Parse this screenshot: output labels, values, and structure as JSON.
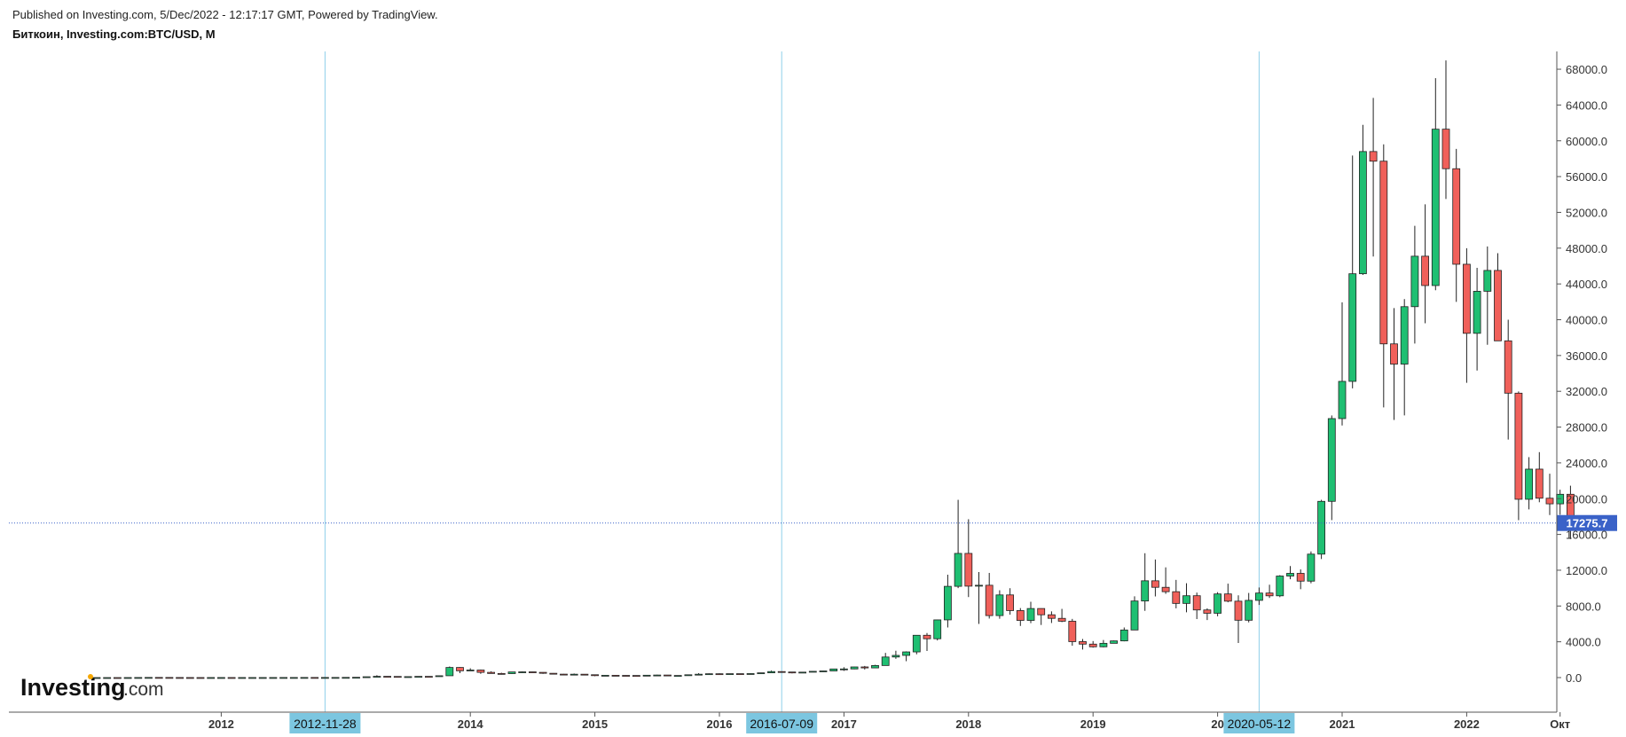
{
  "header": {
    "published": "Published on Investing.com, 5/Dec/2022 - 12:17:17 GMT, Powered by TradingView.",
    "symbol": "Биткоин, Investing.com:BTC/USD, M"
  },
  "logo": {
    "main": "Investing",
    "sub": ".com",
    "dot_color": "#f5a700"
  },
  "colors": {
    "up": "#1fbf72",
    "down": "#f0605a",
    "wick": "#222222",
    "marker": "#8fd0ea",
    "marker_label": "#7cc6e0",
    "price_line": "#3a62c8",
    "axis": "#555555"
  },
  "chart_data": {
    "type": "candlestick",
    "interval": "M",
    "x_axis": {
      "ticks": [
        {
          "label": "2012",
          "date": "2012-01"
        },
        {
          "label": "2014",
          "date": "2014-01"
        },
        {
          "label": "2015",
          "date": "2015-01"
        },
        {
          "label": "2016",
          "date": "2016-01"
        },
        {
          "label": "2017",
          "date": "2017-01"
        },
        {
          "label": "2018",
          "date": "2018-01"
        },
        {
          "label": "2019",
          "date": "2019-01"
        },
        {
          "label": "20",
          "date": "2020-01"
        },
        {
          "label": "2021",
          "date": "2021-01"
        },
        {
          "label": "2022",
          "date": "2022-01"
        },
        {
          "label": "Окт",
          "date": "2022-10"
        }
      ],
      "range": [
        "2011-01",
        "2023-12"
      ]
    },
    "y_axis": {
      "ticks": [
        0,
        4000,
        8000,
        12000,
        16000,
        20000,
        24000,
        28000,
        32000,
        36000,
        40000,
        44000,
        48000,
        52000,
        56000,
        60000,
        64000,
        68000
      ],
      "range": [
        -3900,
        69800
      ],
      "position": "right",
      "tick_format": "one-decimal"
    },
    "markers": [
      {
        "date": "2012-11",
        "label": "2012-11-28"
      },
      {
        "date": "2016-07",
        "label": "2016-07-09"
      },
      {
        "date": "2020-05",
        "label": "2020-05-12"
      }
    ],
    "last_price": 17275.7,
    "last_price_label": "17275.7",
    "candles": [
      [
        "2011-01",
        0.3,
        0.5,
        0.3,
        0.5
      ],
      [
        "2011-02",
        0.5,
        1.1,
        0.5,
        0.9
      ],
      [
        "2011-03",
        0.9,
        1.0,
        0.7,
        0.8
      ],
      [
        "2011-04",
        0.8,
        3.9,
        0.6,
        3.5
      ],
      [
        "2011-05",
        3.5,
        9.0,
        3.0,
        8.7
      ],
      [
        "2011-06",
        8.7,
        31.9,
        8.0,
        16.1
      ],
      [
        "2011-07",
        16.1,
        16.5,
        12.0,
        13.4
      ],
      [
        "2011-08",
        13.4,
        13.9,
        7.0,
        8.2
      ],
      [
        "2011-09",
        8.2,
        8.9,
        4.5,
        5.1
      ],
      [
        "2011-10",
        5.1,
        5.4,
        2.0,
        3.2
      ],
      [
        "2011-11",
        3.2,
        3.5,
        2.0,
        3.0
      ],
      [
        "2011-12",
        3.0,
        4.8,
        2.7,
        4.7
      ],
      [
        "2012-01",
        4.7,
        7.4,
        4.6,
        5.5
      ],
      [
        "2012-02",
        5.5,
        6.1,
        4.2,
        4.9
      ],
      [
        "2012-03",
        4.9,
        5.4,
        4.6,
        4.9
      ],
      [
        "2012-04",
        4.9,
        5.2,
        4.7,
        5.0
      ],
      [
        "2012-05",
        5.0,
        5.3,
        4.9,
        5.2
      ],
      [
        "2012-06",
        5.2,
        6.8,
        5.1,
        6.7
      ],
      [
        "2012-07",
        6.7,
        9.7,
        6.5,
        9.3
      ],
      [
        "2012-08",
        9.3,
        15.4,
        7.1,
        10.2
      ],
      [
        "2012-09",
        10.2,
        12.6,
        10.0,
        12.4
      ],
      [
        "2012-10",
        12.4,
        12.7,
        10.5,
        11.2
      ],
      [
        "2012-11",
        11.2,
        12.8,
        10.1,
        12.6
      ],
      [
        "2012-12",
        12.6,
        13.8,
        12.5,
        13.5
      ],
      [
        "2013-01",
        13.5,
        20.8,
        13.2,
        20.4
      ],
      [
        "2013-02",
        20.4,
        33.4,
        19.6,
        33.4
      ],
      [
        "2013-03",
        33.4,
        95.0,
        33.1,
        93.0
      ],
      [
        "2013-04",
        93.0,
        266.0,
        50.0,
        139.0
      ],
      [
        "2013-05",
        139.0,
        140.0,
        78.0,
        128.0
      ],
      [
        "2013-06",
        128.0,
        129.0,
        85.0,
        97.0
      ],
      [
        "2013-07",
        97.0,
        110.0,
        65.0,
        106.0
      ],
      [
        "2013-08",
        106.0,
        138.0,
        102.0,
        135.0
      ],
      [
        "2013-09",
        135.0,
        141.0,
        120.0,
        133.0
      ],
      [
        "2013-10",
        133.0,
        215.0,
        100.0,
        205.0
      ],
      [
        "2013-11",
        205.0,
        1240.0,
        200.0,
        1130.0
      ],
      [
        "2013-12",
        1130.0,
        1165.0,
        500.0,
        757.0
      ],
      [
        "2014-01",
        757.0,
        1040.0,
        750.0,
        845.0
      ],
      [
        "2014-02",
        845.0,
        900.0,
        420.0,
        585.0
      ],
      [
        "2014-03",
        585.0,
        700.0,
        440.0,
        460.0
      ],
      [
        "2014-04",
        460.0,
        540.0,
        340.0,
        445.0
      ],
      [
        "2014-05",
        445.0,
        630.0,
        420.0,
        630.0
      ],
      [
        "2014-06",
        630.0,
        680.0,
        530.0,
        640.0
      ],
      [
        "2014-07",
        640.0,
        650.0,
        560.0,
        585.0
      ],
      [
        "2014-08",
        585.0,
        600.0,
        420.0,
        480.0
      ],
      [
        "2014-09",
        480.0,
        500.0,
        360.0,
        385.0
      ],
      [
        "2014-10",
        385.0,
        415.0,
        290.0,
        340.0
      ],
      [
        "2014-11",
        340.0,
        455.0,
        320.0,
        378.0
      ],
      [
        "2014-12",
        378.0,
        385.0,
        305.0,
        318.0
      ],
      [
        "2015-01",
        318.0,
        320.0,
        152.0,
        217.0
      ],
      [
        "2015-02",
        217.0,
        265.0,
        210.0,
        254.0
      ],
      [
        "2015-03",
        254.0,
        300.0,
        240.0,
        245.0
      ],
      [
        "2015-04",
        245.0,
        260.0,
        210.0,
        236.0
      ],
      [
        "2015-05",
        236.0,
        250.0,
        228.0,
        230.0
      ],
      [
        "2015-06",
        230.0,
        268.0,
        220.0,
        263.0
      ],
      [
        "2015-07",
        263.0,
        320.0,
        256.0,
        285.0
      ],
      [
        "2015-08",
        285.0,
        285.0,
        198.0,
        230.0
      ],
      [
        "2015-09",
        230.0,
        245.0,
        225.0,
        236.0
      ],
      [
        "2015-10",
        236.0,
        330.0,
        236.0,
        314.0
      ],
      [
        "2015-11",
        314.0,
        495.0,
        300.0,
        377.0
      ],
      [
        "2015-12",
        377.0,
        465.0,
        350.0,
        430.0
      ],
      [
        "2016-01",
        430.0,
        465.0,
        355.0,
        370.0
      ],
      [
        "2016-02",
        370.0,
        445.0,
        365.0,
        437.0
      ],
      [
        "2016-03",
        437.0,
        440.0,
        400.0,
        416.0
      ],
      [
        "2016-04",
        416.0,
        465.0,
        415.0,
        448.0
      ],
      [
        "2016-05",
        448.0,
        550.0,
        440.0,
        532.0
      ],
      [
        "2016-06",
        532.0,
        780.0,
        530.0,
        673.0
      ],
      [
        "2016-07",
        673.0,
        705.0,
        600.0,
        624.0
      ],
      [
        "2016-08",
        624.0,
        625.0,
        470.0,
        573.0
      ],
      [
        "2016-09",
        573.0,
        620.0,
        570.0,
        608.0
      ],
      [
        "2016-10",
        608.0,
        720.0,
        605.0,
        700.0
      ],
      [
        "2016-11",
        700.0,
        755.0,
        690.0,
        742.0
      ],
      [
        "2016-12",
        742.0,
        975.0,
        740.0,
        963.0
      ],
      [
        "2017-01",
        963.0,
        1160.0,
        750.0,
        965.0
      ],
      [
        "2017-02",
        965.0,
        1210.0,
        930.0,
        1190.0
      ],
      [
        "2017-03",
        1190.0,
        1300.0,
        900.0,
        1080.0
      ],
      [
        "2017-04",
        1080.0,
        1420.0,
        1060.0,
        1350.0
      ],
      [
        "2017-05",
        1350.0,
        2760.0,
        1350.0,
        2300.0
      ],
      [
        "2017-06",
        2300.0,
        3000.0,
        2100.0,
        2480.0
      ],
      [
        "2017-07",
        2480.0,
        2930.0,
        1830.0,
        2870.0
      ],
      [
        "2017-08",
        2870.0,
        4750.0,
        2600.0,
        4730.0
      ],
      [
        "2017-09",
        4730.0,
        4980.0,
        2980.0,
        4340.0
      ],
      [
        "2017-10",
        4340.0,
        6470.0,
        4150.0,
        6450.0
      ],
      [
        "2017-11",
        6450.0,
        11500.0,
        5600.0,
        10200.0
      ],
      [
        "2017-12",
        10200.0,
        19870.0,
        10000.0,
        13880.0
      ],
      [
        "2018-01",
        13880.0,
        17700.0,
        9000.0,
        10220.0
      ],
      [
        "2018-02",
        10220.0,
        11800.0,
        6000.0,
        10320.0
      ],
      [
        "2018-03",
        10320.0,
        11700.0,
        6600.0,
        6930.0
      ],
      [
        "2018-04",
        6930.0,
        9760.0,
        6580.0,
        9240.0
      ],
      [
        "2018-05",
        9240.0,
        9990.0,
        7030.0,
        7490.0
      ],
      [
        "2018-06",
        7490.0,
        7770.0,
        5770.0,
        6390.0
      ],
      [
        "2018-07",
        6390.0,
        8480.0,
        6080.0,
        7720.0
      ],
      [
        "2018-08",
        7720.0,
        7740.0,
        5880.0,
        7020.0
      ],
      [
        "2018-09",
        7020.0,
        7400.0,
        6100.0,
        6620.0
      ],
      [
        "2018-10",
        6620.0,
        7680.0,
        6200.0,
        6300.0
      ],
      [
        "2018-11",
        6300.0,
        6560.0,
        3560.0,
        4020.0
      ],
      [
        "2018-12",
        4020.0,
        4310.0,
        3130.0,
        3740.0
      ],
      [
        "2019-01",
        3740.0,
        4080.0,
        3350.0,
        3440.0
      ],
      [
        "2019-02",
        3440.0,
        4200.0,
        3380.0,
        3830.0
      ],
      [
        "2019-03",
        3830.0,
        4140.0,
        3830.0,
        4100.0
      ],
      [
        "2019-04",
        4100.0,
        5600.0,
        4050.0,
        5320.0
      ],
      [
        "2019-05",
        5320.0,
        9080.0,
        5300.0,
        8560.0
      ],
      [
        "2019-06",
        8560.0,
        13900.0,
        7460.0,
        10820.0
      ],
      [
        "2019-07",
        10820.0,
        13200.0,
        9070.0,
        10090.0
      ],
      [
        "2019-08",
        10090.0,
        12320.0,
        9360.0,
        9600.0
      ],
      [
        "2019-09",
        9600.0,
        10920.0,
        7740.0,
        8290.0
      ],
      [
        "2019-10",
        8290.0,
        10540.0,
        7300.0,
        9150.0
      ],
      [
        "2019-11",
        9150.0,
        9500.0,
        6540.0,
        7560.0
      ],
      [
        "2019-12",
        7560.0,
        7740.0,
        6430.0,
        7190.0
      ],
      [
        "2020-01",
        7190.0,
        9550.0,
        6850.0,
        9350.0
      ],
      [
        "2020-02",
        9350.0,
        10500.0,
        8420.0,
        8540.0
      ],
      [
        "2020-03",
        8540.0,
        9190.0,
        3870.0,
        6410.0
      ],
      [
        "2020-04",
        6410.0,
        9460.0,
        6170.0,
        8630.0
      ],
      [
        "2020-05",
        8630.0,
        10070.0,
        8120.0,
        9450.0
      ],
      [
        "2020-06",
        9450.0,
        10380.0,
        8900.0,
        9140.0
      ],
      [
        "2020-07",
        9140.0,
        11450.0,
        8990.0,
        11350.0
      ],
      [
        "2020-08",
        11350.0,
        12470.0,
        10990.0,
        11650.0
      ],
      [
        "2020-09",
        11650.0,
        12090.0,
        9880.0,
        10780.0
      ],
      [
        "2020-10",
        10780.0,
        14100.0,
        10540.0,
        13800.0
      ],
      [
        "2020-11",
        13800.0,
        19870.0,
        13250.0,
        19700.0
      ],
      [
        "2020-12",
        19700.0,
        29300.0,
        17600.0,
        28950.0
      ],
      [
        "2021-01",
        28950.0,
        41950.0,
        28180.0,
        33110.0
      ],
      [
        "2021-02",
        33110.0,
        58350.0,
        32330.0,
        45140.0
      ],
      [
        "2021-03",
        45140.0,
        61780.0,
        45010.0,
        58800.0
      ],
      [
        "2021-04",
        58800.0,
        64800.0,
        47060.0,
        57720.0
      ],
      [
        "2021-05",
        57720.0,
        59600.0,
        30200.0,
        37300.0
      ],
      [
        "2021-06",
        37300.0,
        41300.0,
        28800.0,
        35040.0
      ],
      [
        "2021-07",
        35040.0,
        42300.0,
        29300.0,
        41460.0
      ],
      [
        "2021-08",
        41460.0,
        50500.0,
        37330.0,
        47100.0
      ],
      [
        "2021-09",
        47100.0,
        52900.0,
        39600.0,
        43820.0
      ],
      [
        "2021-10",
        43820.0,
        67000.0,
        43290.0,
        61300.0
      ],
      [
        "2021-11",
        61300.0,
        68990.0,
        53500.0,
        56880.0
      ],
      [
        "2021-12",
        56880.0,
        59100.0,
        42000.0,
        46200.0
      ],
      [
        "2022-01",
        46200.0,
        47990.0,
        32950.0,
        38480.0
      ],
      [
        "2022-02",
        38480.0,
        45800.0,
        34320.0,
        43180.0
      ],
      [
        "2022-03",
        43180.0,
        48190.0,
        37200.0,
        45510.0
      ],
      [
        "2022-04",
        45510.0,
        47440.0,
        37700.0,
        37640.0
      ],
      [
        "2022-05",
        37640.0,
        40000.0,
        26600.0,
        31790.0
      ],
      [
        "2022-06",
        31790.0,
        31980.0,
        17600.0,
        19930.0
      ],
      [
        "2022-07",
        19930.0,
        24640.0,
        18800.0,
        23300.0
      ],
      [
        "2022-08",
        23300.0,
        25200.0,
        19600.0,
        20050.0
      ],
      [
        "2022-09",
        20050.0,
        22790.0,
        18160.0,
        19420.0
      ],
      [
        "2022-10",
        19420.0,
        21000.0,
        18200.0,
        20490.0
      ],
      [
        "2022-11",
        20490.0,
        21450.0,
        15480.0,
        17170.0
      ],
      [
        "2022-12",
        17170.0,
        17400.0,
        16870.0,
        17275.7
      ]
    ]
  }
}
